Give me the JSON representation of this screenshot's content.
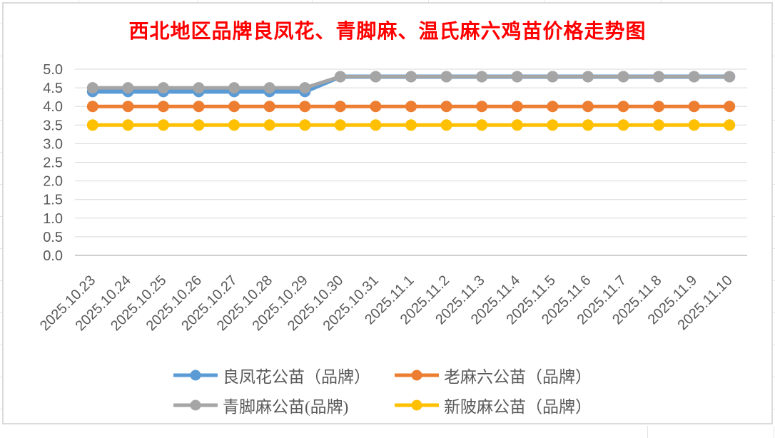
{
  "chart_data": {
    "type": "line",
    "title": "西北地区品牌良凤花、青脚麻、温氏麻六鸡苗价格走势图",
    "title_color": "#FF0000",
    "categories": [
      "2025.10.23",
      "2025.10.24",
      "2025.10.25",
      "2025.10.26",
      "2025.10.27",
      "2025.10.28",
      "2025.10.29",
      "2025.10.30",
      "2025.10.31",
      "2025.11.1",
      "2025.11.2",
      "2025.11.3",
      "2025.11.4",
      "2025.11.5",
      "2025.11.6",
      "2025.11.7",
      "2025.11.8",
      "2025.11.9",
      "2025.11.10"
    ],
    "series": [
      {
        "name": "良凤花公苗（品牌）",
        "color": "#5B9BD5",
        "values": [
          4.4,
          4.4,
          4.4,
          4.4,
          4.4,
          4.4,
          4.4,
          4.8,
          4.8,
          4.8,
          4.8,
          4.8,
          4.8,
          4.8,
          4.8,
          4.8,
          4.8,
          4.8,
          4.8
        ]
      },
      {
        "name": "老麻六公苗（品牌）",
        "color": "#ED7D31",
        "values": [
          4.0,
          4.0,
          4.0,
          4.0,
          4.0,
          4.0,
          4.0,
          4.0,
          4.0,
          4.0,
          4.0,
          4.0,
          4.0,
          4.0,
          4.0,
          4.0,
          4.0,
          4.0,
          4.0
        ]
      },
      {
        "name": "青脚麻公苗(品牌)",
        "color": "#A5A5A5",
        "values": [
          4.5,
          4.5,
          4.5,
          4.5,
          4.5,
          4.5,
          4.5,
          4.8,
          4.8,
          4.8,
          4.8,
          4.8,
          4.8,
          4.8,
          4.8,
          4.8,
          4.8,
          4.8,
          4.8
        ]
      },
      {
        "name": "新陂麻公苗（品牌）",
        "color": "#FFC000",
        "values": [
          3.5,
          3.5,
          3.5,
          3.5,
          3.5,
          3.5,
          3.5,
          3.5,
          3.5,
          3.5,
          3.5,
          3.5,
          3.5,
          3.5,
          3.5,
          3.5,
          3.5,
          3.5,
          3.5
        ]
      }
    ],
    "ylim": [
      0.0,
      5.0
    ],
    "ytick_step": 0.5,
    "ytick_labels": [
      "0.0",
      "0.5",
      "1.0",
      "1.5",
      "2.0",
      "2.5",
      "3.0",
      "3.5",
      "4.0",
      "4.5",
      "5.0"
    ],
    "grid": true,
    "gridline_color": "#D9D9D9",
    "axis_line_color": "#BFBFBF",
    "tick_label_color": "#595959",
    "x_label_rotation_deg": 45,
    "legend_position": "bottom",
    "legend_text_color": "#595959",
    "chart_border_color": "#DBDBDB",
    "marker_style": "circle",
    "line_width": 5
  }
}
